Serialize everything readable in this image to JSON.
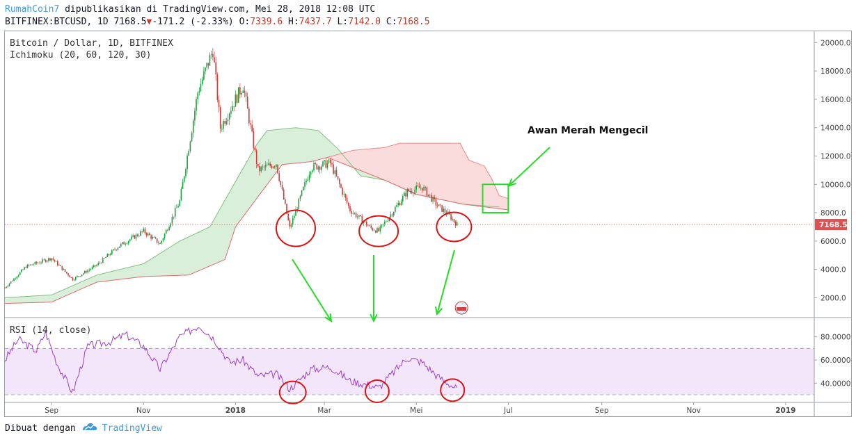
{
  "header": {
    "author": "RumahCoin7",
    "published": "dipublikasikan di TradingView.com, Mei 28, 2018 12:08 UTC",
    "symbol": "BITFINEX:BTCUSD, 1D 7168.5",
    "change_arrow": "▼",
    "change": "-171.2 (-2.33%)",
    "o_label": "O:",
    "o_value": "7339.6",
    "h_label": "H:",
    "h_value": "7437.7",
    "l_label": "L:",
    "l_value": "7142.0",
    "c_label": "C:",
    "c_value": "7168.5"
  },
  "legend": {
    "title": "Bitcoin / Dollar, 1D, BITFINEX",
    "indicator": "Ichimoku (20, 60, 120, 30)",
    "rsi": "RSI (14, close)"
  },
  "annotation": {
    "text": "Awan Merah Mengecil"
  },
  "footer": {
    "made_with": "Dibuat dengan",
    "brand": "TradingView"
  },
  "colors": {
    "up": "#26a69a",
    "up_candle": "#1b9e3e",
    "down": "#d23a3a",
    "green_cloud": "#d9efd9",
    "red_cloud": "#fbdcdc",
    "rsi_band": "#f3e6fb",
    "rsi_line": "#9b3ec7",
    "annotation": "#22dd22",
    "circle": "#dd1111",
    "price_tag": "#e05050"
  },
  "chart_data": [
    {
      "type": "candlestick",
      "title": "Bitcoin / Dollar, 1D, BITFINEX",
      "y_ticks": [
        "20000.0",
        "18000.0",
        "16000.0",
        "14000.0",
        "12000.0",
        "10000.0",
        "8000.0",
        "6000.0",
        "4000.0",
        "2000.0"
      ],
      "y_tick_values": [
        20000,
        18000,
        16000,
        14000,
        12000,
        10000,
        8000,
        6000,
        4000,
        2000
      ],
      "ylim": [
        600,
        20800
      ],
      "last_price_label": "7168.5",
      "last_price": 7168.5,
      "x_ticks": [
        "Sep",
        "Nov",
        "2018",
        "Mar",
        "Mei",
        "Jul",
        "Sep",
        "Nov",
        "2019"
      ],
      "x_tick_bold": [
        false,
        false,
        true,
        false,
        false,
        false,
        false,
        false,
        true
      ],
      "price_path": [
        [
          "2017-08-01",
          2700
        ],
        [
          "2017-08-15",
          4200
        ],
        [
          "2017-09-01",
          4800
        ],
        [
          "2017-09-15",
          3300
        ],
        [
          "2017-10-01",
          4300
        ],
        [
          "2017-10-15",
          5600
        ],
        [
          "2017-11-01",
          6700
        ],
        [
          "2017-11-12",
          5800
        ],
        [
          "2017-11-25",
          8800
        ],
        [
          "2017-12-07",
          16500
        ],
        [
          "2017-12-17",
          19500
        ],
        [
          "2017-12-22",
          14000
        ],
        [
          "2018-01-06",
          17000
        ],
        [
          "2018-01-16",
          11000
        ],
        [
          "2018-01-28",
          11500
        ],
        [
          "2018-02-06",
          6900
        ],
        [
          "2018-02-20",
          11200
        ],
        [
          "2018-03-05",
          11500
        ],
        [
          "2018-03-18",
          8200
        ],
        [
          "2018-04-01",
          6900
        ],
        [
          "2018-04-06",
          6700
        ],
        [
          "2018-04-25",
          9500
        ],
        [
          "2018-05-05",
          9800
        ],
        [
          "2018-05-15",
          8500
        ],
        [
          "2018-05-22",
          7900
        ],
        [
          "2018-05-28",
          7168.5
        ]
      ],
      "cloud": {
        "green_top": [
          [
            "2017-08-01",
            2000
          ],
          [
            "2017-09-01",
            2200
          ],
          [
            "2017-10-01",
            3600
          ],
          [
            "2017-11-01",
            4400
          ],
          [
            "2017-11-25",
            6000
          ],
          [
            "2017-12-15",
            7000
          ],
          [
            "2018-01-01",
            10200
          ],
          [
            "2018-01-15",
            12800
          ],
          [
            "2018-01-22",
            13800
          ],
          [
            "2018-02-10",
            14000
          ],
          [
            "2018-02-25",
            13800
          ],
          [
            "2018-03-10",
            12500
          ],
          [
            "2018-03-25",
            10600
          ],
          [
            "2018-04-10",
            10300
          ],
          [
            "2018-05-01",
            9300
          ],
          [
            "2018-06-01",
            8600
          ],
          [
            "2018-06-25",
            8400
          ]
        ],
        "red_top": [
          [
            "2018-03-03",
            11900
          ],
          [
            "2018-03-20",
            12400
          ],
          [
            "2018-04-10",
            12600
          ],
          [
            "2018-04-20",
            12900
          ],
          [
            "2018-05-30",
            12900
          ],
          [
            "2018-06-05",
            11700
          ],
          [
            "2018-06-15",
            11300
          ],
          [
            "2018-06-20",
            10400
          ],
          [
            "2018-06-25",
            9200
          ],
          [
            "2018-07-01",
            9000
          ]
        ],
        "bottom": [
          [
            "2017-08-01",
            1600
          ],
          [
            "2017-09-01",
            1700
          ],
          [
            "2017-10-01",
            3100
          ],
          [
            "2017-11-01",
            3500
          ],
          [
            "2017-12-01",
            3600
          ],
          [
            "2017-12-25",
            4700
          ],
          [
            "2018-01-01",
            7000
          ],
          [
            "2018-01-15",
            9000
          ],
          [
            "2018-02-01",
            11400
          ],
          [
            "2018-02-20",
            11600
          ],
          [
            "2018-03-03",
            11900
          ],
          [
            "2018-04-10",
            10300
          ],
          [
            "2018-05-01",
            9300
          ],
          [
            "2018-06-01",
            8600
          ],
          [
            "2018-07-01",
            8200
          ]
        ]
      },
      "annotation_box": {
        "from": "2018-06-14",
        "to": "2018-07-01",
        "low": 8000,
        "high": 10000
      }
    },
    {
      "type": "line",
      "title": "RSI (14, close)",
      "y_ticks": [
        "80.0000",
        "60.0000",
        "40.0000"
      ],
      "y_tick_values": [
        80,
        60,
        40
      ],
      "band": [
        30,
        70
      ],
      "ylim": [
        24,
        96
      ],
      "series": [
        {
          "values": [
            [
              "2017-08-01",
              60
            ],
            [
              "2017-08-10",
              78
            ],
            [
              "2017-08-22",
              68
            ],
            [
              "2017-08-28",
              84
            ],
            [
              "2017-09-05",
              56
            ],
            [
              "2017-09-15",
              32
            ],
            [
              "2017-09-25",
              72
            ],
            [
              "2017-10-10",
              76
            ],
            [
              "2017-10-20",
              82
            ],
            [
              "2017-11-01",
              72
            ],
            [
              "2017-11-12",
              52
            ],
            [
              "2017-11-25",
              80
            ],
            [
              "2017-12-08",
              90
            ],
            [
              "2017-12-18",
              78
            ],
            [
              "2017-12-28",
              58
            ],
            [
              "2018-01-06",
              60
            ],
            [
              "2018-01-16",
              46
            ],
            [
              "2018-01-28",
              48
            ],
            [
              "2018-02-06",
              35
            ],
            [
              "2018-02-20",
              52
            ],
            [
              "2018-03-05",
              54
            ],
            [
              "2018-03-18",
              42
            ],
            [
              "2018-04-01",
              38
            ],
            [
              "2018-04-06",
              36
            ],
            [
              "2018-04-25",
              62
            ],
            [
              "2018-05-05",
              58
            ],
            [
              "2018-05-15",
              46
            ],
            [
              "2018-05-22",
              40
            ],
            [
              "2018-05-28",
              35
            ]
          ]
        }
      ]
    }
  ]
}
